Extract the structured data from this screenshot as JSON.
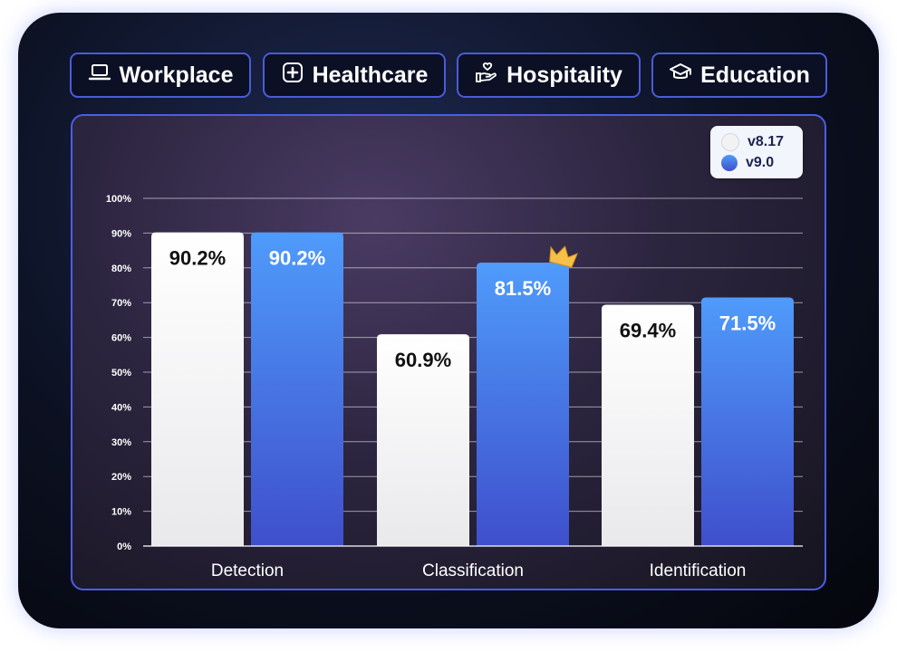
{
  "tabs": [
    {
      "label": "Workplace",
      "icon": "laptop-icon"
    },
    {
      "label": "Healthcare",
      "icon": "medical-cross-icon"
    },
    {
      "label": "Hospitality",
      "icon": "hand-heart-icon"
    },
    {
      "label": "Education",
      "icon": "graduation-cap-icon"
    }
  ],
  "colors": {
    "accent": "#4b5bd9",
    "series_v817": "#f2f2f2",
    "series_v90_top": "#4f9bfb",
    "series_v90_bottom": "#3f4fcc",
    "crown": "#f5c04a"
  },
  "chart_data": {
    "type": "bar",
    "categories": [
      "Detection",
      "Classification",
      "Identification"
    ],
    "series": [
      {
        "name": "v8.17",
        "values": [
          90.2,
          60.9,
          69.4
        ]
      },
      {
        "name": "v9.0",
        "values": [
          90.2,
          81.5,
          71.5
        ]
      }
    ],
    "data_labels": [
      [
        "90.2%",
        "60.9%",
        "69.4%"
      ],
      [
        "90.2%",
        "81.5%",
        "71.5%"
      ]
    ],
    "yticks": [
      "0%",
      "10%",
      "20%",
      "30%",
      "40%",
      "50%",
      "60%",
      "70%",
      "80%",
      "90%",
      "100%"
    ],
    "ylim": [
      0,
      100
    ],
    "grid": true,
    "legend_position": "top-right",
    "highlight": {
      "series": 1,
      "category": 1,
      "icon": "crown-icon"
    }
  }
}
